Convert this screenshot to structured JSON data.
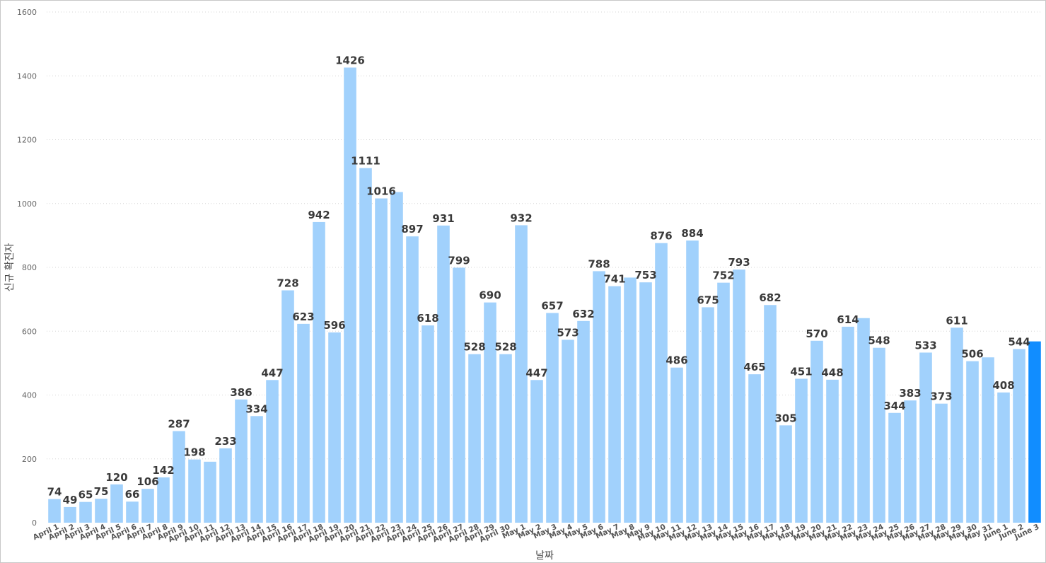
{
  "chart_data": {
    "type": "bar",
    "xlabel": "날짜",
    "ylabel": "신규 확진자",
    "ylim": [
      0,
      1600
    ],
    "yticks": [
      0,
      200,
      400,
      600,
      800,
      1000,
      1200,
      1400,
      1600
    ],
    "grid": true,
    "colors": {
      "bar": "#a1d1fc",
      "highlight": "#118dff",
      "label": "#3a3a3a"
    },
    "categories": [
      "April 1",
      "April 2",
      "April 3",
      "April 4",
      "April 5",
      "April 6",
      "April 7",
      "April 8",
      "April 9",
      "April 10",
      "April 11",
      "April 12",
      "April 13",
      "April 14",
      "April 15",
      "April 16",
      "April 17",
      "April 18",
      "April 19",
      "April 20",
      "April 21",
      "April 22",
      "April 23",
      "April 24",
      "April 25",
      "April 26",
      "April 27",
      "April 28",
      "April 29",
      "April 30",
      "May 1",
      "May 2",
      "May 3",
      "May 4",
      "May 5",
      "May 6",
      "May 7",
      "May 8",
      "May 9",
      "May 10",
      "May 11",
      "May 12",
      "May 13",
      "May 14",
      "May 15",
      "May 16",
      "May 17",
      "May 18",
      "May 19",
      "May 20",
      "May 21",
      "May 22",
      "May 23",
      "May 24",
      "May 25",
      "May 26",
      "May 27",
      "May 28",
      "May 29",
      "May 30",
      "May 31",
      "June 1",
      "June 2",
      "June 3"
    ],
    "values": [
      74,
      49,
      65,
      75,
      120,
      66,
      106,
      142,
      287,
      198,
      191,
      233,
      386,
      334,
      447,
      728,
      623,
      942,
      596,
      1426,
      1111,
      1016,
      1036,
      897,
      618,
      931,
      799,
      528,
      690,
      528,
      932,
      447,
      657,
      573,
      632,
      788,
      741,
      768,
      753,
      876,
      486,
      884,
      675,
      752,
      793,
      465,
      682,
      305,
      451,
      570,
      448,
      614,
      641,
      548,
      344,
      383,
      533,
      373,
      611,
      506,
      518,
      408,
      544,
      568
    ],
    "data_labels": [
      "74",
      "49",
      "65",
      "75",
      "120",
      "66",
      "106",
      "142",
      "287",
      "198",
      "",
      "233",
      "386",
      "334",
      "447",
      "728",
      "623",
      "942",
      "596",
      "1426",
      "1111",
      "1016",
      "",
      "897",
      "618",
      "931",
      "799",
      "528",
      "690",
      "528",
      "932",
      "447",
      "657",
      "573",
      "632",
      "788",
      "741",
      "",
      "753",
      "876",
      "486",
      "884",
      "675",
      "752",
      "793",
      "465",
      "682",
      "305",
      "451",
      "570",
      "448",
      "614",
      "",
      "548",
      "344",
      "383",
      "533",
      "373",
      "611",
      "506",
      "",
      "408",
      "544",
      ""
    ],
    "highlight_index": 63
  }
}
